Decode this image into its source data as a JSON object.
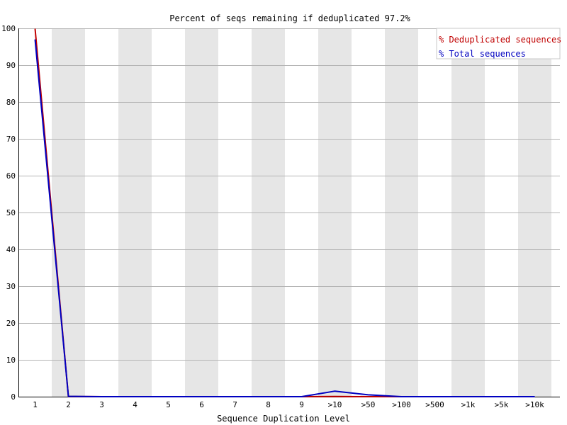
{
  "chart_data": {
    "type": "line",
    "title": "Percent of seqs remaining if deduplicated 97.2%",
    "xlabel": "Sequence Duplication Level",
    "ylabel": "",
    "ylim": [
      0,
      100
    ],
    "yticks": [
      0,
      10,
      20,
      30,
      40,
      50,
      60,
      70,
      80,
      90,
      100
    ],
    "categories": [
      "1",
      "2",
      "3",
      "4",
      "5",
      "6",
      "7",
      "8",
      "9",
      ">10",
      ">50",
      ">100",
      ">500",
      ">1k",
      ">5k",
      ">10k"
    ],
    "grid": true,
    "legend_position": "top-right",
    "series": [
      {
        "name": "% Deduplicated sequences",
        "color": "#c00000",
        "values": [
          99.9,
          0.05,
          0.0,
          0.0,
          0.0,
          0.0,
          0.0,
          0.0,
          0.0,
          0.05,
          0.0,
          0.0,
          0.0,
          0.0,
          0.0,
          0.0
        ]
      },
      {
        "name": "% Total sequences",
        "color": "#0000c0",
        "values": [
          97.0,
          0.1,
          0.0,
          0.0,
          0.0,
          0.0,
          0.0,
          0.0,
          0.0,
          1.5,
          0.5,
          0.0,
          0.0,
          0.0,
          0.0,
          0.0
        ]
      }
    ]
  }
}
